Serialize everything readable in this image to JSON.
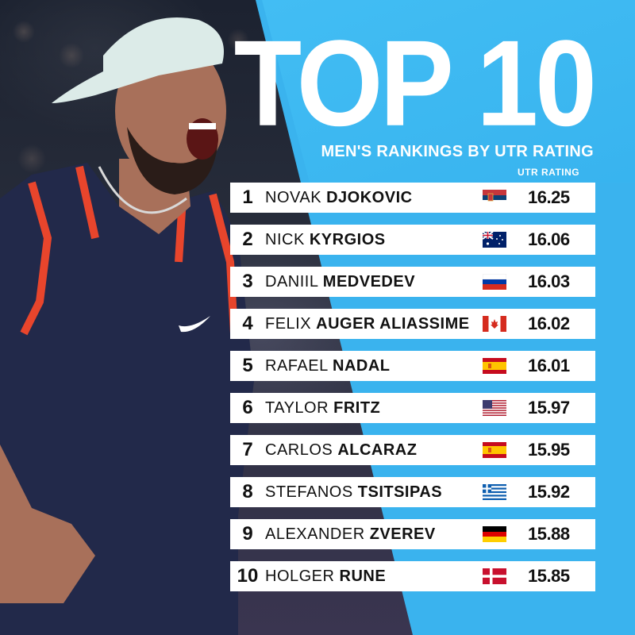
{
  "header": {
    "title": "TOP 10",
    "subtitle": "MEN'S RANKINGS BY UTR RATING",
    "column_label": "UTR RATING"
  },
  "rankings": [
    {
      "rank": "1",
      "first": "NOVAK",
      "last": "DJOKOVIC",
      "flag": "serbia-flag",
      "rating": "16.25"
    },
    {
      "rank": "2",
      "first": "NICK",
      "last": "KYRGIOS",
      "flag": "australia-flag",
      "rating": "16.06"
    },
    {
      "rank": "3",
      "first": "DANIIL",
      "last": "MEDVEDEV",
      "flag": "russia-flag",
      "rating": "16.03"
    },
    {
      "rank": "4",
      "first": "FELIX",
      "last": "AUGER ALIASSIME",
      "flag": "canada-flag",
      "rating": "16.02"
    },
    {
      "rank": "5",
      "first": "RAFAEL",
      "last": "NADAL",
      "flag": "spain-flag",
      "rating": "16.01"
    },
    {
      "rank": "6",
      "first": "TAYLOR",
      "last": "FRITZ",
      "flag": "usa-flag",
      "rating": "15.97"
    },
    {
      "rank": "7",
      "first": "CARLOS",
      "last": "ALCARAZ",
      "flag": "spain-flag",
      "rating": "15.95"
    },
    {
      "rank": "8",
      "first": "STEFANOS",
      "last": "TSITSIPAS",
      "flag": "greece-flag",
      "rating": "15.92"
    },
    {
      "rank": "9",
      "first": "ALEXANDER",
      "last": "ZVEREV",
      "flag": "germany-flag",
      "rating": "15.88"
    },
    {
      "rank": "10",
      "first": "HOLGER",
      "last": "RUNE",
      "flag": "denmark-flag",
      "rating": "15.85"
    }
  ],
  "colors": {
    "background_blue": "#3ab3ee",
    "row_background": "#ffffff",
    "text": "#111111"
  }
}
